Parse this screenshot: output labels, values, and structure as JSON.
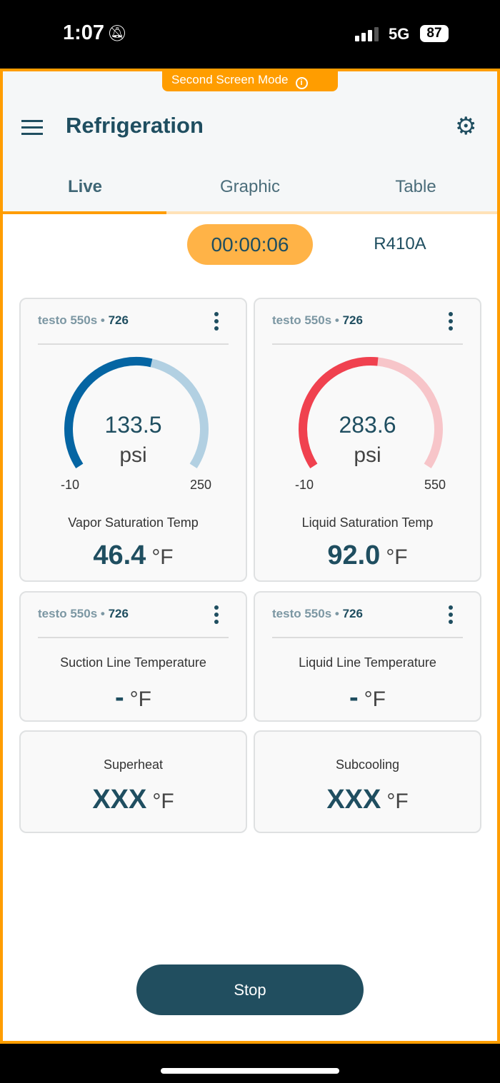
{
  "status_bar": {
    "time": "1:07",
    "network": "5G",
    "battery": "87",
    "icons": [
      "bell-slash-icon",
      "signal-icon"
    ]
  },
  "banner": {
    "label": "Second Screen Mode",
    "icon": "info-icon"
  },
  "header": {
    "title": "Refrigeration",
    "menu_icon": "hamburger-icon",
    "settings_icon": "gear-icon"
  },
  "tabs": [
    {
      "label": "Live",
      "active": true
    },
    {
      "label": "Graphic"
    },
    {
      "label": "Table"
    }
  ],
  "timer": "00:00:06",
  "refrigerant": "R410A",
  "colors": {
    "accent": "#ff9d00",
    "primary": "#1f4e60",
    "vapor": "#0565a3",
    "vapor_track": "#b2d0e2",
    "liquid": "#f0414f",
    "liquid_track": "#f7c5c9"
  },
  "cards": [
    {
      "device": "testo 550s",
      "id": "726",
      "value": "133.5",
      "unit": "psi",
      "min": "-10",
      "max": "250",
      "gauge_min": -10,
      "gauge_max": 250,
      "gauge_value": 133.5,
      "label": "Vapor Saturation Temp",
      "temp": "46.4",
      "temp_unit": "°F"
    },
    {
      "device": "testo 550s",
      "id": "726",
      "value": "283.6",
      "unit": "psi",
      "min": "-10",
      "max": "550",
      "gauge_min": -10,
      "gauge_max": 550,
      "gauge_value": 283.6,
      "label": "Liquid Saturation Temp",
      "temp": "92.0",
      "temp_unit": "°F"
    },
    {
      "device": "testo 550s",
      "id": "726",
      "label": "Suction Line Temperature",
      "temp": "-",
      "temp_unit": "°F"
    },
    {
      "device": "testo 550s",
      "id": "726",
      "label": "Liquid Line Temperature",
      "temp": "-",
      "temp_unit": "°F"
    },
    {
      "label": "Superheat",
      "temp": "XXX",
      "temp_unit": "°F"
    },
    {
      "label": "Subcooling",
      "temp": "XXX",
      "temp_unit": "°F"
    }
  ],
  "stop_label": "Stop",
  "separator": "•"
}
